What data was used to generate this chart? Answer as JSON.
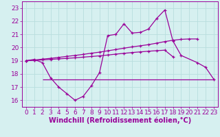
{
  "xlabel": "Windchill (Refroidissement éolien,°C)",
  "background_color": "#d6f0f0",
  "line_color": "#990099",
  "x_ticks": [
    0,
    1,
    2,
    3,
    4,
    5,
    6,
    7,
    8,
    9,
    10,
    11,
    12,
    13,
    14,
    15,
    16,
    17,
    18,
    19,
    20,
    21,
    22,
    23
  ],
  "y_ticks": [
    16,
    17,
    18,
    19,
    20,
    21,
    22,
    23
  ],
  "ylim": [
    15.5,
    23.5
  ],
  "xlim": [
    -0.5,
    23.5
  ],
  "series_zigzag": [
    19.0,
    19.1,
    18.85,
    17.7,
    17.0,
    16.5,
    16.0,
    16.3,
    17.1,
    18.1,
    20.9,
    21.0,
    21.8,
    21.1,
    21.15,
    21.4,
    22.2,
    22.85,
    20.5,
    19.4,
    null,
    18.85,
    18.5,
    17.6
  ],
  "series_upper": [
    19.0,
    19.05,
    19.12,
    19.18,
    19.25,
    19.33,
    19.4,
    19.48,
    19.57,
    19.65,
    19.75,
    19.85,
    19.95,
    20.05,
    20.13,
    20.22,
    20.33,
    20.45,
    20.55,
    20.62,
    20.65,
    20.65,
    null,
    null
  ],
  "series_lower": [
    19.0,
    19.03,
    19.06,
    19.1,
    19.14,
    19.18,
    19.22,
    19.27,
    19.32,
    19.37,
    19.43,
    19.5,
    19.56,
    19.62,
    19.67,
    19.72,
    19.76,
    19.8,
    19.3,
    null,
    null,
    null,
    null,
    null
  ],
  "hline_y": 17.6,
  "hline_x_start": 2,
  "hline_x_end": 23,
  "grid_color": "#b8dede",
  "tick_fontsize": 6.5,
  "xlabel_fontsize": 7
}
